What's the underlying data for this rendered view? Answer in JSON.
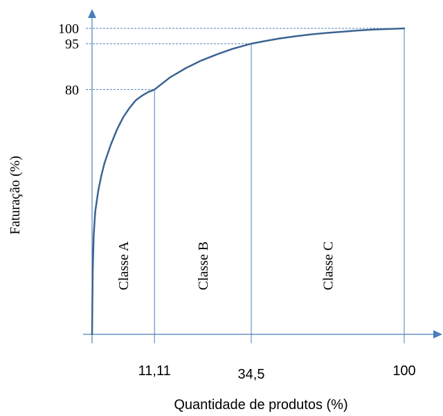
{
  "chart_data": {
    "type": "line",
    "title": "",
    "xlabel": "Quantidade de produtos (%)",
    "ylabel": "Faturação (%)",
    "xlim": [
      0,
      100
    ],
    "ylim": [
      0,
      100
    ],
    "x_ticks": [
      {
        "value": 20,
        "label": "11,11"
      },
      {
        "value": 51,
        "label": "34,5"
      },
      {
        "value": 100,
        "label": "100"
      }
    ],
    "y_ticks": [
      {
        "value": 80,
        "label": "80"
      },
      {
        "value": 95,
        "label": "95"
      },
      {
        "value": 100,
        "label": "100"
      }
    ],
    "series": [
      {
        "x": [
          0,
          0.2,
          0.5,
          1,
          2,
          3,
          4,
          6,
          8,
          10,
          12,
          14,
          16,
          18,
          20,
          25,
          30,
          35,
          40,
          45,
          51,
          55,
          60,
          65,
          70,
          75,
          80,
          85,
          90,
          95,
          100
        ],
        "y": [
          0,
          20,
          32,
          40,
          47,
          52,
          56,
          62,
          67,
          71,
          74,
          76.5,
          78,
          79.2,
          80,
          84,
          87,
          89.5,
          91.5,
          93.3,
          95,
          95.8,
          96.7,
          97.4,
          98,
          98.5,
          98.9,
          99.3,
          99.6,
          99.8,
          100
        ]
      }
    ],
    "class_labels": [
      "Classe A",
      "Classe B",
      "Classe C"
    ],
    "grid": false,
    "colors": {
      "curve": "#3b6391",
      "axis": "#4a7ebb",
      "guide": "#4a7ebb"
    }
  }
}
